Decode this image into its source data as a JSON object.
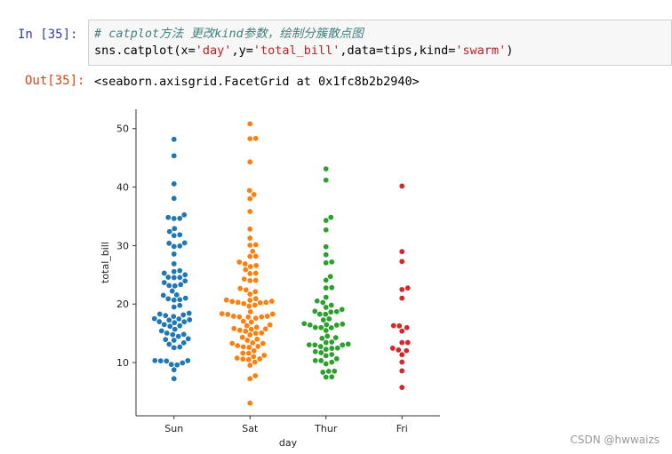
{
  "cell_in": {
    "prompt": "In  [35]:",
    "comment": "# catplot方法 更改kind参数，绘制分簇散点图",
    "code": "sns.catplot(x='day',y='total_bill',data=tips,kind='swarm')"
  },
  "cell_out": {
    "prompt": "Out[35]:",
    "text": "<seaborn.axisgrid.FacetGrid at 0x1fc8b2b2940>"
  },
  "watermark": "CSDN @hwwaizs",
  "chart_data": {
    "type": "swarm",
    "xlabel": "day",
    "ylabel": "total_bill",
    "categories": [
      "Sun",
      "Sat",
      "Thur",
      "Fri"
    ],
    "colors": [
      "#1f77b4",
      "#ff7f0e",
      "#2ca02c",
      "#d62728"
    ],
    "ylim": [
      0.9,
      53.3
    ],
    "yticks": [
      10,
      20,
      30,
      40,
      50
    ],
    "values": [
      [
        16.99,
        10.34,
        21.01,
        23.68,
        24.59,
        25.29,
        8.77,
        26.88,
        15.04,
        14.78,
        10.27,
        35.26,
        15.42,
        18.43,
        14.83,
        21.58,
        10.33,
        16.29,
        16.97,
        17.46,
        13.94,
        9.68,
        30.4,
        18.29,
        22.23,
        32.4,
        28.55,
        18.04,
        12.54,
        10.29,
        34.81,
        9.94,
        25.56,
        19.49,
        38.07,
        23.95,
        25.71,
        17.31,
        29.93,
        14.07,
        13.13,
        17.26,
        24.55,
        19.77,
        29.85,
        48.17,
        25.0,
        13.39,
        16.49,
        21.5,
        12.66,
        16.21,
        13.81,
        17.51,
        24.52,
        20.76,
        31.71,
        7.25,
        31.85,
        16.82,
        32.9,
        17.89,
        14.48,
        9.6,
        34.63,
        34.65,
        23.33,
        45.35,
        23.17,
        40.55,
        20.69,
        20.9,
        30.46,
        18.15,
        23.1,
        15.69
      ],
      [
        20.65,
        17.92,
        20.29,
        15.77,
        39.42,
        19.82,
        17.81,
        13.37,
        12.69,
        21.7,
        19.65,
        9.55,
        18.35,
        15.06,
        20.69,
        17.78,
        24.06,
        16.31,
        16.93,
        18.69,
        31.27,
        16.04,
        38.01,
        26.41,
        11.24,
        48.27,
        20.29,
        13.81,
        11.02,
        18.29,
        17.59,
        20.08,
        16.45,
        3.07,
        20.23,
        15.01,
        12.02,
        17.07,
        26.86,
        25.28,
        14.73,
        10.51,
        17.92,
        44.3,
        22.42,
        20.92,
        15.36,
        20.49,
        25.21,
        18.24,
        14.31,
        14.0,
        7.25,
        10.59,
        10.63,
        50.81,
        15.81,
        26.59,
        38.73,
        24.27,
        12.76,
        30.06,
        25.89,
        48.33,
        13.27,
        28.17,
        12.9,
        28.15,
        11.59,
        7.74,
        30.14,
        20.45,
        13.28,
        22.12,
        24.01,
        15.69,
        11.61,
        10.77,
        15.53,
        10.07,
        12.6,
        32.83,
        35.83,
        29.03,
        27.18,
        22.67,
        17.82
      ],
      [
        27.2,
        22.76,
        17.29,
        19.44,
        16.66,
        10.07,
        32.68,
        15.98,
        34.83,
        13.03,
        18.28,
        24.71,
        21.16,
        10.65,
        12.43,
        24.08,
        11.69,
        13.42,
        14.26,
        15.95,
        12.48,
        29.8,
        8.52,
        14.52,
        11.38,
        22.82,
        19.08,
        20.27,
        11.17,
        12.26,
        18.26,
        8.51,
        10.33,
        14.15,
        16.0,
        13.16,
        17.47,
        34.3,
        41.19,
        27.05,
        16.43,
        8.35,
        18.64,
        11.87,
        9.78,
        7.51,
        19.81,
        28.44,
        15.48,
        16.58,
        7.56,
        10.34,
        43.11,
        13.0,
        13.51,
        18.71,
        12.74,
        13.0,
        16.4,
        20.53,
        16.47,
        18.78
      ],
      [
        28.97,
        22.49,
        5.75,
        16.32,
        22.75,
        40.17,
        27.28,
        12.03,
        21.01,
        12.46,
        11.35,
        15.38,
        12.16,
        13.42,
        8.58,
        15.98,
        13.42,
        16.27,
        10.09
      ]
    ]
  }
}
